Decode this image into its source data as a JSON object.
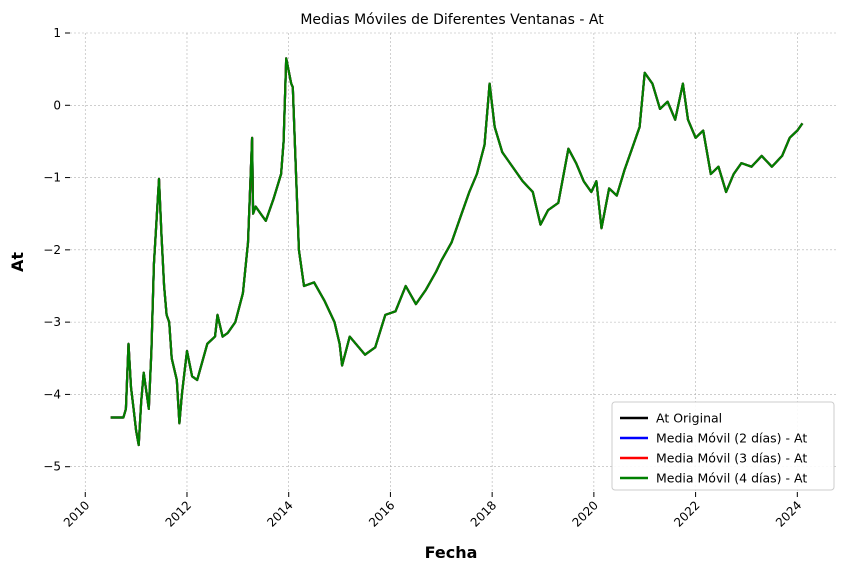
{
  "chart_data": {
    "type": "line",
    "title": "Medias Móviles de Diferentes Ventanas - At",
    "xlabel": "Fecha",
    "ylabel": "At",
    "xlim": [
      2009.7,
      2024.8
    ],
    "ylim": [
      -5.35,
      1.0
    ],
    "x_ticks": [
      2010,
      2012,
      2014,
      2016,
      2018,
      2020,
      2022,
      2024
    ],
    "x_tick_labels": [
      "2010",
      "2012",
      "2014",
      "2016",
      "2018",
      "2020",
      "2022",
      "2024"
    ],
    "y_ticks": [
      1,
      0,
      -1,
      -2,
      -3,
      -4,
      -5
    ],
    "y_tick_labels": [
      "1",
      "0",
      "−1",
      "−2",
      "−3",
      "−4",
      "−5"
    ],
    "grid": true,
    "legend_position": "bottom-right",
    "series": [
      {
        "name": "At Original",
        "color": "#000000",
        "offset": 0.0
      },
      {
        "name": "Media Móvil (2 días) - At",
        "color": "#0000ff",
        "offset": 0.0
      },
      {
        "name": "Media Móvil (3 días) - At",
        "color": "#ff0000",
        "offset": 0.0
      },
      {
        "name": "Media Móvil (4 días) - At",
        "color": "#008000",
        "offset": 0.0
      }
    ],
    "x": [
      2010.5,
      2010.75,
      2010.8,
      2010.85,
      2010.9,
      2010.95,
      2011.0,
      2011.05,
      2011.1,
      2011.15,
      2011.25,
      2011.3,
      2011.35,
      2011.45,
      2011.5,
      2011.55,
      2011.6,
      2011.65,
      2011.7,
      2011.8,
      2011.85,
      2011.9,
      2011.95,
      2012.0,
      2012.1,
      2012.2,
      2012.4,
      2012.55,
      2012.6,
      2012.7,
      2012.8,
      2012.95,
      2013.1,
      2013.2,
      2013.28,
      2013.3,
      2013.35,
      2013.45,
      2013.55,
      2013.7,
      2013.85,
      2013.9,
      2013.95,
      2014.05,
      2014.08,
      2014.12,
      2014.2,
      2014.3,
      2014.5,
      2014.7,
      2014.9,
      2015.0,
      2015.05,
      2015.2,
      2015.5,
      2015.7,
      2015.9,
      2016.1,
      2016.3,
      2016.5,
      2016.7,
      2016.9,
      2017.0,
      2017.2,
      2017.4,
      2017.55,
      2017.7,
      2017.85,
      2017.95,
      2018.05,
      2018.2,
      2018.4,
      2018.6,
      2018.8,
      2018.95,
      2019.1,
      2019.3,
      2019.5,
      2019.65,
      2019.8,
      2019.95,
      2020.05,
      2020.15,
      2020.3,
      2020.45,
      2020.6,
      2020.75,
      2020.9,
      2021.0,
      2021.15,
      2021.3,
      2021.45,
      2021.6,
      2021.75,
      2021.85,
      2022.0,
      2022.15,
      2022.3,
      2022.45,
      2022.6,
      2022.75,
      2022.9,
      2023.1,
      2023.3,
      2023.5,
      2023.7,
      2023.85,
      2024.0,
      2024.1
    ],
    "y": [
      -4.32,
      -4.32,
      -4.2,
      -3.3,
      -3.9,
      -4.2,
      -4.5,
      -4.7,
      -4.1,
      -3.7,
      -4.2,
      -3.4,
      -2.2,
      -1.02,
      -1.8,
      -2.5,
      -2.9,
      -3.0,
      -3.5,
      -3.8,
      -4.4,
      -4.0,
      -3.7,
      -3.4,
      -3.75,
      -3.8,
      -3.3,
      -3.2,
      -2.9,
      -3.2,
      -3.15,
      -3.0,
      -2.6,
      -1.9,
      -0.45,
      -1.5,
      -1.4,
      -1.5,
      -1.6,
      -1.3,
      -0.95,
      -0.5,
      0.65,
      0.3,
      0.25,
      -0.5,
      -2.0,
      -2.5,
      -2.45,
      -2.7,
      -3.0,
      -3.3,
      -3.6,
      -3.2,
      -3.45,
      -3.35,
      -2.9,
      -2.85,
      -2.5,
      -2.75,
      -2.55,
      -2.3,
      -2.15,
      -1.9,
      -1.5,
      -1.2,
      -0.95,
      -0.55,
      0.3,
      -0.3,
      -0.65,
      -0.85,
      -1.05,
      -1.2,
      -1.65,
      -1.45,
      -1.35,
      -0.6,
      -0.8,
      -1.05,
      -1.2,
      -1.05,
      -1.7,
      -1.15,
      -1.25,
      -0.9,
      -0.6,
      -0.3,
      0.45,
      0.3,
      -0.05,
      0.05,
      -0.2,
      0.3,
      -0.2,
      -0.45,
      -0.35,
      -0.95,
      -0.85,
      -1.2,
      -0.95,
      -0.8,
      -0.85,
      -0.7,
      -0.85,
      -0.7,
      -0.45,
      -0.35,
      -0.25
    ]
  }
}
